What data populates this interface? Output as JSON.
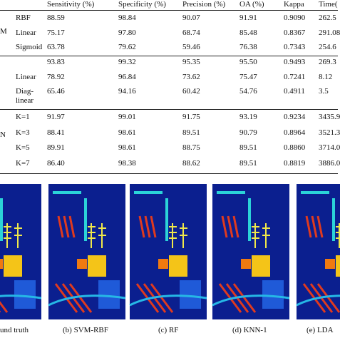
{
  "table": {
    "header": [
      "Sensitivity (%)",
      "Specificity (%)",
      "Precision (%)",
      "OA (%)",
      "Kappa",
      "Time("
    ],
    "groups": [
      "M",
      "N"
    ],
    "rows": [
      [
        "RBF",
        "88.59",
        "98.84",
        "90.07",
        "91.91",
        "0.9090",
        "262.5"
      ],
      [
        "Linear",
        "75.17",
        "97.80",
        "68.74",
        "85.48",
        "0.8367",
        "291.08"
      ],
      [
        "Sigmoid",
        "63.78",
        "79.62",
        "59.46",
        "76.38",
        "0.7343",
        "254.6"
      ],
      [
        "",
        "93.83",
        "99.32",
        "95.35",
        "95.50",
        "0.9493",
        "269.3"
      ],
      [
        "Linear",
        "78.92",
        "96.84",
        "73.62",
        "75.47",
        "0.7241",
        "8.12"
      ],
      [
        "Diag-linear",
        "65.46",
        "94.16",
        "60.42",
        "54.76",
        "0.4911",
        "3.5"
      ],
      [
        "K=1",
        "91.97",
        "99.01",
        "91.75",
        "93.19",
        "0.9234",
        "3435.9"
      ],
      [
        "K=3",
        "88.41",
        "98.61",
        "89.51",
        "90.79",
        "0.8964",
        "3521.3"
      ],
      [
        "K=5",
        "89.91",
        "98.61",
        "88.75",
        "89.51",
        "0.8860",
        "3714.0"
      ],
      [
        "K=7",
        "86.40",
        "98.38",
        "88.62",
        "89.51",
        "0.8819",
        "3886.0"
      ]
    ]
  },
  "figure": {
    "captions": [
      "und truth",
      "(b) SVM-RBF",
      "(c) RF",
      "(d) KNN-1",
      "(e) LDA"
    ]
  }
}
